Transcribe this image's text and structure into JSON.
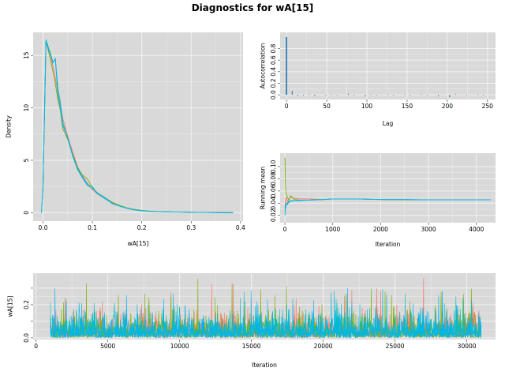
{
  "title": "Diagnostics for wA[15]",
  "series_colors": [
    "#F8766D",
    "#7CAE00",
    "#00BFC4",
    "#00B4F0"
  ],
  "chart_data": [
    {
      "type": "line",
      "panel": "density",
      "xlabel": "wA[15]",
      "ylabel": "Density",
      "xlim": [
        -0.02,
        0.405
      ],
      "ylim": [
        -0.8,
        17.2
      ],
      "xticks": [
        0.0,
        0.1,
        0.2,
        0.3,
        0.4
      ],
      "xtick_labels": [
        "0.0",
        "0.1",
        "0.2",
        "0.3",
        "0.4"
      ],
      "yticks": [
        0,
        5,
        10,
        15
      ],
      "ytick_labels": [
        "0",
        "5",
        "10",
        "15"
      ],
      "grid": true,
      "series": [
        {
          "color": "#F8766D",
          "x": [
            -0.003,
            0.0,
            0.003,
            0.006,
            0.01,
            0.015,
            0.02,
            0.025,
            0.03,
            0.035,
            0.04,
            0.05,
            0.06,
            0.07,
            0.08,
            0.09,
            0.1,
            0.11,
            0.12,
            0.13,
            0.14,
            0.15,
            0.16,
            0.17,
            0.18,
            0.2,
            0.22,
            0.25,
            0.28,
            0.3,
            0.33,
            0.36,
            0.385
          ],
          "y": [
            0,
            2.5,
            9.5,
            16.2,
            15.8,
            15.0,
            14.0,
            12.8,
            11.5,
            10.3,
            9.0,
            7.3,
            5.8,
            4.4,
            3.5,
            2.8,
            2.2,
            1.8,
            1.5,
            1.2,
            0.95,
            0.75,
            0.6,
            0.45,
            0.33,
            0.2,
            0.13,
            0.08,
            0.06,
            0.04,
            0.02,
            0.01,
            0
          ]
        },
        {
          "color": "#7CAE00",
          "x": [
            -0.003,
            0.0,
            0.003,
            0.006,
            0.01,
            0.015,
            0.02,
            0.025,
            0.03,
            0.035,
            0.04,
            0.05,
            0.06,
            0.07,
            0.08,
            0.09,
            0.1,
            0.11,
            0.12,
            0.13,
            0.14,
            0.15,
            0.16,
            0.17,
            0.18,
            0.2,
            0.22,
            0.25,
            0.28,
            0.3,
            0.33,
            0.36,
            0.385
          ],
          "y": [
            0,
            2.4,
            9.3,
            16.4,
            15.6,
            14.6,
            13.5,
            12.3,
            10.8,
            9.8,
            8.0,
            7.0,
            5.6,
            4.3,
            3.6,
            3.2,
            2.4,
            1.9,
            1.6,
            1.3,
            1.0,
            0.8,
            0.62,
            0.47,
            0.35,
            0.22,
            0.14,
            0.09,
            0.06,
            0.04,
            0.02,
            0.01,
            0
          ]
        },
        {
          "color": "#00BFC4",
          "x": [
            -0.003,
            0.0,
            0.003,
            0.006,
            0.01,
            0.015,
            0.02,
            0.025,
            0.03,
            0.035,
            0.04,
            0.05,
            0.06,
            0.07,
            0.08,
            0.09,
            0.1,
            0.11,
            0.12,
            0.13,
            0.14,
            0.15,
            0.16,
            0.17,
            0.18,
            0.2,
            0.22,
            0.25,
            0.28,
            0.3,
            0.33,
            0.36,
            0.385
          ],
          "y": [
            0,
            2.6,
            9.8,
            16.5,
            15.9,
            15.2,
            14.3,
            14.7,
            11.9,
            10.6,
            8.6,
            7.1,
            5.4,
            4.1,
            3.3,
            2.6,
            2.3,
            1.9,
            1.5,
            1.2,
            0.9,
            0.72,
            0.58,
            0.44,
            0.32,
            0.19,
            0.12,
            0.08,
            0.07,
            0.04,
            0.02,
            0.01,
            0
          ]
        },
        {
          "color": "#00B4F0",
          "x": [
            -0.003,
            0.0,
            0.003,
            0.006,
            0.01,
            0.015,
            0.02,
            0.025,
            0.03,
            0.035,
            0.04,
            0.05,
            0.06,
            0.07,
            0.08,
            0.09,
            0.1,
            0.11,
            0.12,
            0.13,
            0.14,
            0.15,
            0.16,
            0.17,
            0.18,
            0.2,
            0.22,
            0.25,
            0.28,
            0.3,
            0.33,
            0.36,
            0.385
          ],
          "y": [
            0,
            2.5,
            9.6,
            16.3,
            15.7,
            15.1,
            14.4,
            14.6,
            11.2,
            10.0,
            8.3,
            7.2,
            5.5,
            4.2,
            3.4,
            2.7,
            2.5,
            1.8,
            1.6,
            1.3,
            0.85,
            0.7,
            0.55,
            0.42,
            0.3,
            0.18,
            0.12,
            0.08,
            0.05,
            0.03,
            0.02,
            0.01,
            0
          ]
        }
      ]
    },
    {
      "type": "bar",
      "panel": "autocorrelation",
      "xlabel": "Lag",
      "ylabel": "Autocorrelation",
      "xlim": [
        -8,
        260
      ],
      "ylim": [
        -0.08,
        1.08
      ],
      "xticks": [
        0,
        50,
        100,
        150,
        200,
        250
      ],
      "xtick_labels": [
        "0",
        "50",
        "100",
        "150",
        "200",
        "250"
      ],
      "yticks": [
        0.0,
        0.2,
        0.4,
        0.6,
        0.8
      ],
      "ytick_labels": [
        "0.0",
        "0.2",
        "0.4",
        "0.6",
        "0.8"
      ],
      "grid": true,
      "lags": [
        0,
        7,
        14,
        21,
        28,
        35,
        42,
        49,
        56,
        63,
        70,
        77,
        84,
        91,
        98,
        105,
        112,
        119,
        126,
        133,
        140,
        147,
        154,
        161,
        168,
        175,
        182,
        189,
        196,
        203,
        210,
        217,
        224,
        231,
        238,
        245,
        252
      ],
      "values": [
        1.0,
        0.07,
        -0.02,
        -0.01,
        0.01,
        -0.02,
        0.0,
        -0.01,
        0.01,
        -0.01,
        0.0,
        0.02,
        -0.01,
        0.0,
        -0.02,
        0.01,
        -0.01,
        0.0,
        0.01,
        -0.01,
        0.0,
        0.01,
        -0.01,
        0.0,
        0.01,
        -0.01,
        0.0,
        -0.02,
        0.0,
        -0.04,
        0.01,
        0.0,
        -0.01,
        0.0,
        0.01,
        -0.01,
        0.0
      ]
    },
    {
      "type": "line",
      "panel": "running-mean",
      "xlabel": "Iteration",
      "ylabel": "Running mean",
      "xlim": [
        -100,
        4400
      ],
      "ylim": [
        0.008,
        0.122
      ],
      "xticks": [
        0,
        1000,
        2000,
        3000,
        4000
      ],
      "xtick_labels": [
        "0",
        "1000",
        "2000",
        "3000",
        "4000"
      ],
      "yticks": [
        0.02,
        0.04,
        0.06,
        0.08,
        0.1
      ],
      "ytick_labels": [
        "0.02",
        "0.04",
        "0.06",
        "0.08",
        "0.10"
      ],
      "grid": true,
      "series": [
        {
          "color": "#F8766D",
          "x": [
            1,
            10,
            25,
            50,
            80,
            120,
            200,
            300,
            500,
            800,
            1000,
            1500,
            2000,
            2500,
            3000,
            3500,
            4000,
            4300
          ],
          "y": [
            0.03,
            0.045,
            0.05,
            0.042,
            0.046,
            0.05,
            0.048,
            0.047,
            0.047,
            0.046,
            0.047,
            0.047,
            0.046,
            0.046,
            0.0455,
            0.0455,
            0.0455,
            0.0455
          ]
        },
        {
          "color": "#7CAE00",
          "x": [
            1,
            10,
            25,
            50,
            80,
            120,
            200,
            300,
            500,
            800,
            1000,
            1500,
            2000,
            2500,
            3000,
            3500,
            4000,
            4300
          ],
          "y": [
            0.115,
            0.07,
            0.055,
            0.05,
            0.045,
            0.052,
            0.046,
            0.045,
            0.045,
            0.046,
            0.047,
            0.047,
            0.046,
            0.0455,
            0.0455,
            0.0455,
            0.0455,
            0.0455
          ]
        },
        {
          "color": "#00BFC4",
          "x": [
            1,
            10,
            25,
            50,
            80,
            120,
            200,
            300,
            500,
            800,
            1000,
            1500,
            2000,
            2500,
            3000,
            3500,
            4000,
            4300
          ],
          "y": [
            0.02,
            0.03,
            0.036,
            0.04,
            0.043,
            0.044,
            0.044,
            0.045,
            0.045,
            0.046,
            0.047,
            0.047,
            0.046,
            0.046,
            0.0455,
            0.0455,
            0.0455,
            0.0455
          ]
        },
        {
          "color": "#00B4F0",
          "x": [
            1,
            10,
            25,
            50,
            80,
            120,
            200,
            300,
            500,
            800,
            1000,
            1500,
            2000,
            2500,
            3000,
            3500,
            4000,
            4300
          ],
          "y": [
            0.025,
            0.035,
            0.04,
            0.038,
            0.041,
            0.043,
            0.044,
            0.044,
            0.045,
            0.046,
            0.047,
            0.047,
            0.046,
            0.046,
            0.0455,
            0.0455,
            0.0455,
            0.0455
          ]
        }
      ]
    },
    {
      "type": "line",
      "panel": "trace",
      "xlabel": "Iteration",
      "ylabel": "wA[15]",
      "xlim": [
        -200,
        32000
      ],
      "ylim": [
        -0.01,
        0.39
      ],
      "xticks": [
        0,
        5000,
        10000,
        15000,
        20000,
        25000,
        30000
      ],
      "xtick_labels": [
        "0",
        "5000",
        "10000",
        "15000",
        "20000",
        "25000",
        "30000"
      ],
      "yticks": [
        0.0,
        0.1,
        0.2,
        0.3
      ],
      "ytick_labels": [
        "0.0",
        "",
        "0.2",
        ""
      ],
      "grid": true,
      "iteration_range": [
        1000,
        31000
      ],
      "series": [
        {
          "color": "#F8766D",
          "mean": 0.046,
          "max": 0.37
        },
        {
          "color": "#7CAE00",
          "mean": 0.046,
          "max": 0.36
        },
        {
          "color": "#00BFC4",
          "mean": 0.046,
          "max": 0.31
        },
        {
          "color": "#00B4F0",
          "mean": 0.046,
          "max": 0.3
        }
      ]
    }
  ]
}
